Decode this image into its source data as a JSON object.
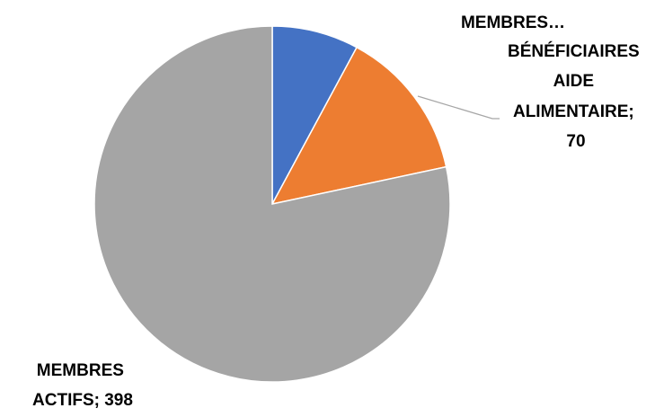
{
  "chart_data": {
    "type": "pie",
    "categories": [
      "MEMBRES…",
      "BÉNÉFICIAIRES AIDE ALIMENTAIRE",
      "MEMBRES ACTIFS"
    ],
    "values": [
      40,
      70,
      398
    ],
    "colors": [
      "#4472C4",
      "#ED7D31",
      "#A5A5A5"
    ],
    "start_angle_deg": 0,
    "direction": "clockwise",
    "data_labels": [
      {
        "lines": [
          "MEMBRES…"
        ]
      },
      {
        "lines": [
          "BÉNÉFICIAIRES",
          "AIDE",
          "ALIMENTAIRE;",
          "70"
        ]
      },
      {
        "lines": [
          "MEMBRES",
          "ACTIFS; 398"
        ]
      }
    ],
    "legend": "none"
  }
}
